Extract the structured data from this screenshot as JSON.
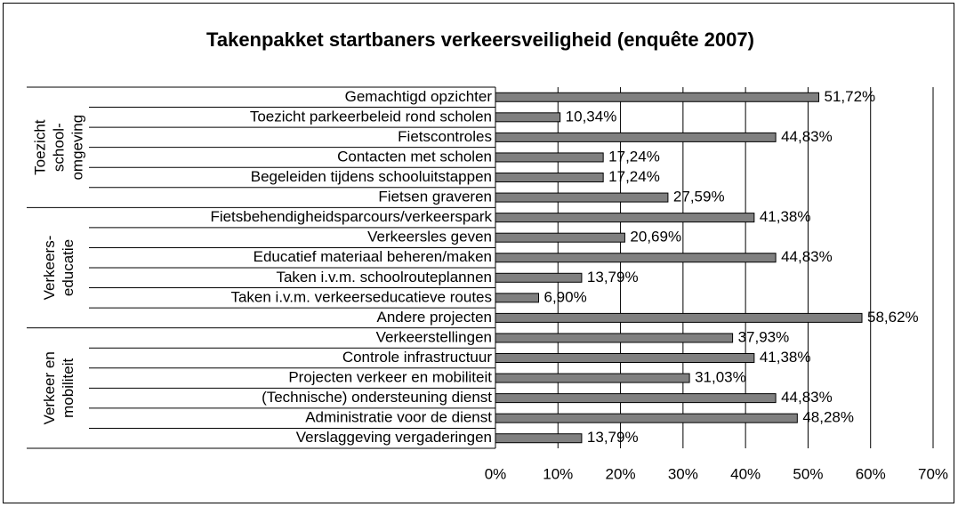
{
  "chart_data": {
    "type": "bar",
    "title": "Takenpakket startbaners verkeersveiligheid (enquête 2007)",
    "color": "#808080",
    "grid": true,
    "xlim": [
      0,
      70
    ],
    "xticks": [
      {
        "value": 0,
        "label": "0%"
      },
      {
        "value": 10,
        "label": "10%"
      },
      {
        "value": 20,
        "label": "20%"
      },
      {
        "value": 30,
        "label": "30%"
      },
      {
        "value": 40,
        "label": "40%"
      },
      {
        "value": 50,
        "label": "50%"
      },
      {
        "value": 60,
        "label": "60%"
      },
      {
        "value": 70,
        "label": "70%"
      }
    ],
    "groups": [
      {
        "name": [
          "Toezicht",
          "school-",
          "omgeving"
        ],
        "categories": [
          "Gemachtigd opzichter",
          "Toezicht parkeerbeleid rond scholen",
          "Fietscontroles",
          "Contacten met scholen",
          "Begeleiden tijdens schooluitstappen",
          "Fietsen graveren"
        ],
        "values": [
          51.72,
          10.34,
          44.83,
          17.24,
          17.24,
          27.59
        ],
        "value_labels": [
          "51,72%",
          "10,34%",
          "44,83%",
          "17,24%",
          "17,24%",
          "27,59%"
        ]
      },
      {
        "name": [
          "Verkeers-",
          "educatie"
        ],
        "categories": [
          "Fietsbehendigheidsparcours/verkeerspark",
          "Verkeersles geven",
          "Educatief materiaal beheren/maken",
          "Taken i.v.m. schoolrouteplannen",
          "Taken i.v.m. verkeerseducatieve routes",
          "Andere projecten"
        ],
        "values": [
          41.38,
          20.69,
          44.83,
          13.79,
          6.9,
          58.62
        ],
        "value_labels": [
          "41,38%",
          "20,69%",
          "44,83%",
          "13,79%",
          "6,90%",
          "58,62%"
        ]
      },
      {
        "name": [
          "Verkeer en",
          "mobiliteit"
        ],
        "categories": [
          "Verkeerstellingen",
          "Controle infrastructuur",
          "Projecten verkeer en mobiliteit",
          "(Technische) ondersteuning dienst",
          "Administratie voor de dienst",
          "Verslaggeving vergaderingen"
        ],
        "values": [
          37.93,
          41.38,
          31.03,
          44.83,
          48.28,
          13.79
        ],
        "value_labels": [
          "37,93%",
          "41,38%",
          "31,03%",
          "44,83%",
          "48,28%",
          "13,79%"
        ]
      }
    ]
  }
}
